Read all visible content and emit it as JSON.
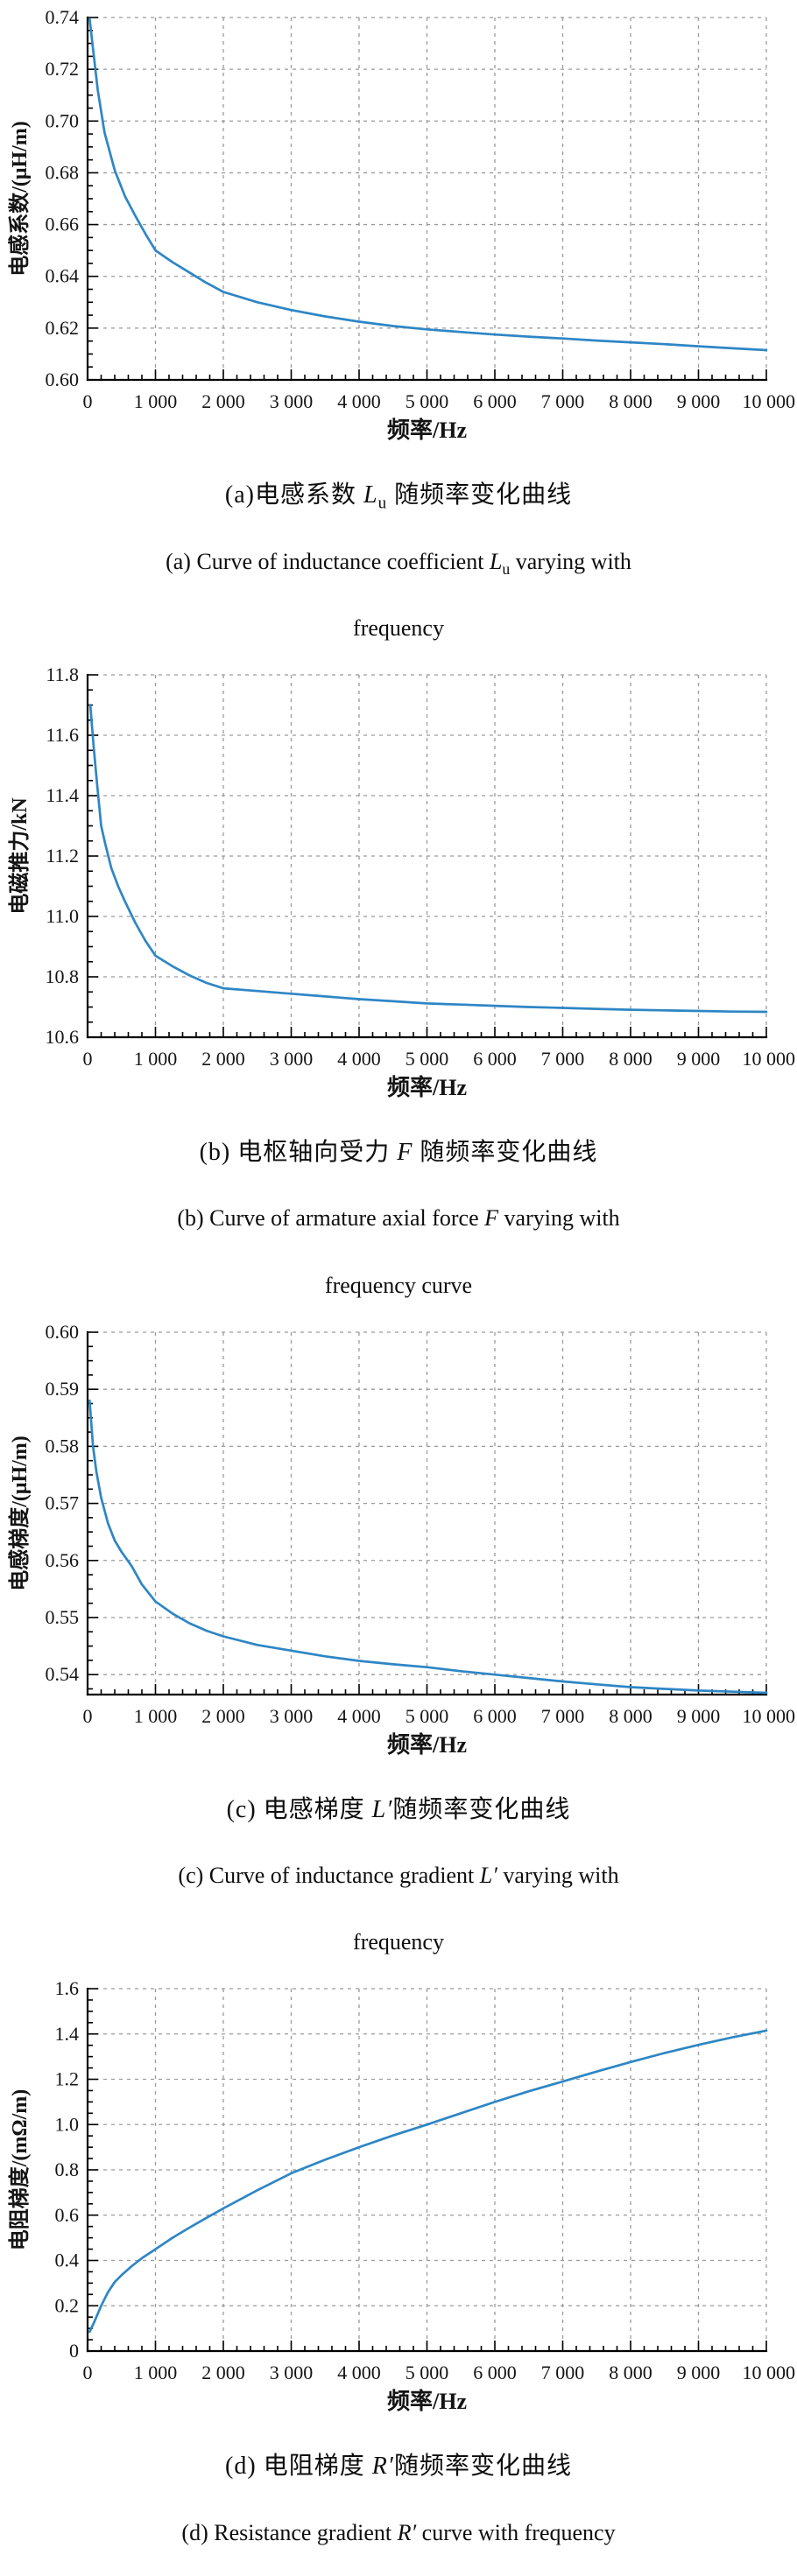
{
  "page": {
    "background": "#ffffff"
  },
  "figures": [
    {
      "id": "a",
      "caption_zh": {
        "pre": "(a)电感系数 ",
        "sym": "L",
        "sub": "u",
        "post": " 随频率变化曲线"
      },
      "caption_en": {
        "pre": "(a) Curve of inductance coefficient ",
        "sym": "L",
        "sub": "u",
        "post": " varying with",
        "line2": "frequency"
      }
    },
    {
      "id": "b",
      "caption_zh": {
        "pre": "(b) 电枢轴向受力 ",
        "sym": "F",
        "sub": "",
        "post": " 随频率变化曲线"
      },
      "caption_en": {
        "pre": "(b) Curve of armature axial force ",
        "sym": "F",
        "sub": "",
        "post": " varying with",
        "line2": "frequency curve"
      }
    },
    {
      "id": "c",
      "caption_zh": {
        "pre": "(c) 电感梯度 ",
        "sym": "L′",
        "sub": "",
        "post": "随频率变化曲线"
      },
      "caption_en": {
        "pre": "(c) Curve of inductance gradient ",
        "sym": "L′",
        "sub": "",
        "post": " varying with",
        "line2": "frequency"
      }
    },
    {
      "id": "d",
      "caption_zh": {
        "pre": "(d) 电阻梯度 ",
        "sym": "R′",
        "sub": "",
        "post": "随频率变化曲线"
      },
      "caption_en": {
        "pre": "(d) Resistance gradient ",
        "sym": "R′",
        "sub": "",
        "post": " curve with frequency",
        "line2": ""
      }
    }
  ],
  "chart_data": [
    {
      "type": "line",
      "title": "(a) 电感系数 Lu 随频率变化曲线",
      "xlabel": "频率/Hz",
      "ylabel": "电感系数/(μH/m)",
      "xlim": [
        0,
        10000
      ],
      "ylim": [
        0.6,
        0.74
      ],
      "xticks": [
        0,
        1000,
        2000,
        3000,
        4000,
        5000,
        6000,
        7000,
        8000,
        9000,
        10000
      ],
      "xtick_labels": [
        "0",
        "1 000",
        "2 000",
        "3 000",
        "4 000",
        "5 000",
        "6 000",
        "7 000",
        "8 000",
        "9 000",
        "10 000"
      ],
      "yticks": [
        0.6,
        0.62,
        0.64,
        0.66,
        0.68,
        0.7,
        0.72,
        0.74
      ],
      "ytick_labels": [
        "0.60",
        "0.62",
        "0.64",
        "0.66",
        "0.68",
        "0.70",
        "0.72",
        "0.74"
      ],
      "x_minor_step": 200,
      "y_minor_step": 0.005,
      "grid": true,
      "legend": "none",
      "line_color": "#2e86c5",
      "x": [
        30,
        150,
        250,
        400,
        550,
        700,
        850,
        1000,
        1250,
        1500,
        1750,
        2000,
        2500,
        3000,
        3500,
        4000,
        4500,
        5000,
        5500,
        6000,
        6500,
        7000,
        7500,
        8000,
        8500,
        9000,
        9500,
        10000
      ],
      "y": [
        0.7395,
        0.712,
        0.6955,
        0.681,
        0.671,
        0.6635,
        0.6565,
        0.65,
        0.6455,
        0.6415,
        0.6375,
        0.634,
        0.63,
        0.627,
        0.6245,
        0.6225,
        0.6208,
        0.6195,
        0.6185,
        0.6175,
        0.6167,
        0.616,
        0.6152,
        0.6145,
        0.6138,
        0.613,
        0.6122,
        0.6115
      ]
    },
    {
      "type": "line",
      "title": "(b) 电枢轴向受力 F 随频率变化曲线",
      "xlabel": "频率/Hz",
      "ylabel": "电磁推力/kN",
      "xlim": [
        0,
        10000
      ],
      "ylim": [
        10.6,
        11.8
      ],
      "xticks": [
        0,
        1000,
        2000,
        3000,
        4000,
        5000,
        6000,
        7000,
        8000,
        9000,
        10000
      ],
      "xtick_labels": [
        "0",
        "1 000",
        "2 000",
        "3 000",
        "4 000",
        "5 000",
        "6 000",
        "7 000",
        "8 000",
        "9 000",
        "10 000"
      ],
      "yticks": [
        10.6,
        10.8,
        11.0,
        11.2,
        11.4,
        11.6,
        11.8
      ],
      "ytick_labels": [
        "10.6",
        "10.8",
        "11.0",
        "11.2",
        "11.4",
        "11.6",
        "11.8"
      ],
      "x_minor_step": 200,
      "y_minor_step": 0.05,
      "grid": true,
      "legend": "none",
      "line_color": "#2e86c5",
      "x": [
        40,
        90,
        140,
        200,
        260,
        350,
        450,
        550,
        700,
        850,
        1000,
        1250,
        1500,
        1750,
        2000,
        2500,
        3000,
        3500,
        4000,
        4500,
        5000,
        5500,
        6000,
        6500,
        7000,
        7500,
        8000,
        8500,
        9000,
        9500,
        10000
      ],
      "y": [
        11.7,
        11.56,
        11.44,
        11.3,
        11.24,
        11.16,
        11.1,
        11.05,
        10.98,
        10.92,
        10.87,
        10.835,
        10.805,
        10.78,
        10.762,
        10.753,
        10.744,
        10.735,
        10.726,
        10.719,
        10.712,
        10.708,
        10.704,
        10.7,
        10.697,
        10.694,
        10.691,
        10.689,
        10.687,
        10.685,
        10.684
      ]
    },
    {
      "type": "line",
      "title": "(c) 电感梯度 L′随频率变化曲线",
      "xlabel": "频率/Hz",
      "ylabel": "电感梯度/(μH/m)",
      "xlim": [
        0,
        10000
      ],
      "ylim": [
        0.5365,
        0.6
      ],
      "xticks": [
        0,
        1000,
        2000,
        3000,
        4000,
        5000,
        6000,
        7000,
        8000,
        9000,
        10000
      ],
      "xtick_labels": [
        "0",
        "1 000",
        "2 000",
        "3 000",
        "4 000",
        "5 000",
        "6 000",
        "7 000",
        "8 000",
        "9 000",
        "10 000"
      ],
      "yticks": [
        0.54,
        0.55,
        0.56,
        0.57,
        0.58,
        0.59,
        0.6
      ],
      "ytick_labels": [
        "0.54",
        "0.55",
        "0.56",
        "0.57",
        "0.58",
        "0.59",
        "0.60"
      ],
      "x_minor_step": 200,
      "y_minor_step": 0.0025,
      "grid": true,
      "legend": "none",
      "line_color": "#2e86c5",
      "x": [
        30,
        80,
        130,
        200,
        300,
        400,
        500,
        650,
        800,
        1000,
        1250,
        1500,
        1750,
        2000,
        2500,
        3000,
        3500,
        4000,
        4500,
        5000,
        5500,
        6000,
        6500,
        7000,
        7500,
        8000,
        8500,
        9000,
        9500,
        10000
      ],
      "y": [
        0.588,
        0.58,
        0.5755,
        0.571,
        0.5665,
        0.5635,
        0.5615,
        0.559,
        0.5558,
        0.5528,
        0.5507,
        0.549,
        0.5477,
        0.5467,
        0.5452,
        0.5442,
        0.5432,
        0.5424,
        0.5418,
        0.5413,
        0.5406,
        0.54,
        0.5394,
        0.5388,
        0.5383,
        0.5378,
        0.5375,
        0.5372,
        0.537,
        0.5368
      ]
    },
    {
      "type": "line",
      "title": "(d) 电阻梯度 R′随频率变化曲线",
      "xlabel": "频率/Hz",
      "ylabel": "电阻梯度/(mΩ/m)",
      "xlim": [
        0,
        10000
      ],
      "ylim": [
        0,
        1.6
      ],
      "xticks": [
        0,
        1000,
        2000,
        3000,
        4000,
        5000,
        6000,
        7000,
        8000,
        9000,
        10000
      ],
      "xtick_labels": [
        "0",
        "1 000",
        "2 000",
        "3 000",
        "4 000",
        "5 000",
        "6 000",
        "7 000",
        "8 000",
        "9 000",
        "10 000"
      ],
      "yticks": [
        0,
        0.2,
        0.4,
        0.6,
        0.8,
        1.0,
        1.2,
        1.4,
        1.6
      ],
      "ytick_labels": [
        "0",
        "0.2",
        "0.4",
        "0.6",
        "0.8",
        "1.0",
        "1.2",
        "1.4",
        "1.6"
      ],
      "x_minor_step": 200,
      "y_minor_step": 0.05,
      "grid": true,
      "legend": "none",
      "line_color": "#2e86c5",
      "x": [
        30,
        100,
        200,
        300,
        400,
        500,
        650,
        800,
        1000,
        1250,
        1500,
        1750,
        2000,
        2500,
        3000,
        3500,
        4000,
        4500,
        5000,
        5500,
        6000,
        6500,
        7000,
        7500,
        8000,
        8500,
        9000,
        9500,
        10000
      ],
      "y": [
        0.085,
        0.13,
        0.2,
        0.26,
        0.305,
        0.335,
        0.375,
        0.41,
        0.45,
        0.5,
        0.545,
        0.588,
        0.63,
        0.71,
        0.785,
        0.845,
        0.9,
        0.952,
        1.0,
        1.05,
        1.1,
        1.147,
        1.19,
        1.234,
        1.276,
        1.316,
        1.352,
        1.385,
        1.415
      ]
    }
  ],
  "style": {
    "grid_color": "#9a9a9a",
    "axis_color": "#000000",
    "text_color": "#141414"
  }
}
